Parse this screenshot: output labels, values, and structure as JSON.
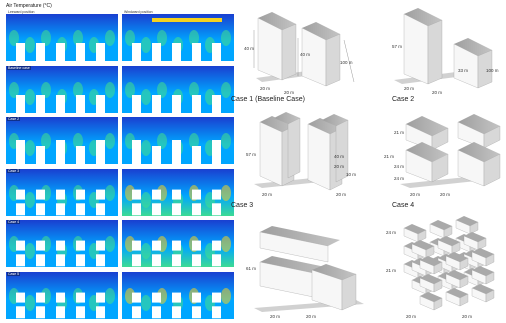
{
  "figure_left": {
    "title": "Air Temperature (°C)",
    "col_headers": [
      "Leeward position",
      "Windward position"
    ],
    "row_labels": [
      "",
      "Baseline case",
      "Case 2",
      "Case 3",
      "Case 4",
      "Case 5"
    ],
    "colorbar_label": "Air temperature"
  },
  "cases": [
    {
      "label": "Case 1 (Baseline Case)",
      "dims": [
        "40 m",
        "40 m",
        "20 m",
        "20 m",
        "100 m"
      ]
    },
    {
      "label": "Case 2",
      "dims": [
        "57 m",
        "20 m",
        "20 m",
        "33 m",
        "100 m"
      ]
    },
    {
      "label": "Case 3",
      "dims": [
        "57 m",
        "40 m",
        "20 m",
        "10 m",
        "20 m",
        "20 m"
      ]
    },
    {
      "label": "Case 4",
      "dims": [
        "21 m",
        "21 m",
        "24 m",
        "24 m",
        "20 m",
        "20 m"
      ]
    },
    {
      "label": "",
      "dims": [
        "61 m",
        "20 m",
        "20 m"
      ]
    },
    {
      "label": "",
      "dims": [
        "24 m",
        "21 m",
        "20 m",
        "20 m"
      ]
    }
  ],
  "colors": {
    "cfd_bg": "#1a3fd0",
    "cfd_mid": "#00a6ff",
    "cfd_warm": "#43e08a",
    "cfd_hot": "#f5d21e",
    "building_front": "#f7f7f7",
    "building_side": "#d9d9d9",
    "building_top": "#a9a9a9",
    "shadow": "#bdbdbd"
  }
}
